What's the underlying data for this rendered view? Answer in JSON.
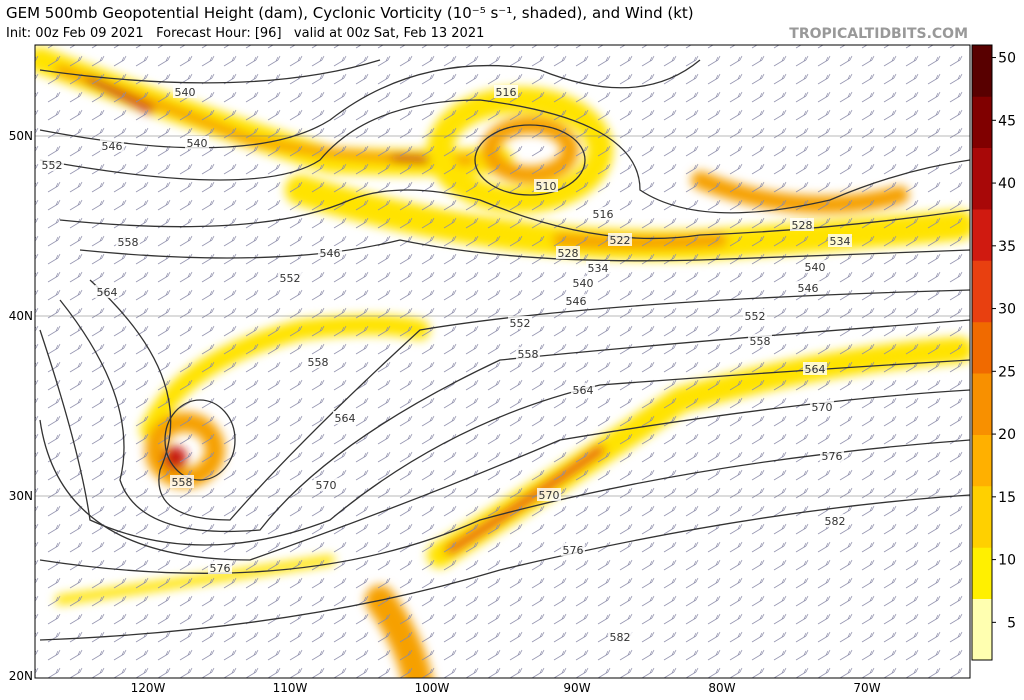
{
  "header": {
    "title": "GEM 500mb Geopotential Height (dam), Cyclonic Vorticity (10⁻⁵ s⁻¹, shaded), and Wind (kt)",
    "subtitle": "Init: 00z Feb 09 2021   Forecast Hour: [96]   valid at 00z Sat, Feb 13 2021",
    "source": "TROPICALTIDBITS.COM"
  },
  "map": {
    "lat_labels": [
      "50N",
      "40N",
      "30N",
      "20N"
    ],
    "lon_labels": [
      "120W",
      "110W",
      "100W",
      "90W",
      "80W",
      "70W"
    ],
    "contour_labels": [
      "540",
      "540",
      "546",
      "552",
      "558",
      "564",
      "546",
      "552",
      "558",
      "564",
      "570",
      "558",
      "576",
      "516",
      "510",
      "516",
      "522",
      "528",
      "534",
      "540",
      "546",
      "552",
      "558",
      "564",
      "570",
      "576",
      "582",
      "528",
      "534",
      "540",
      "546",
      "552",
      "558",
      "564",
      "570",
      "576",
      "582"
    ]
  },
  "colorbar": {
    "lim": [
      2,
      51
    ],
    "ticks": [
      5,
      10,
      15,
      20,
      25,
      30,
      35,
      40,
      45,
      50
    ]
  }
}
